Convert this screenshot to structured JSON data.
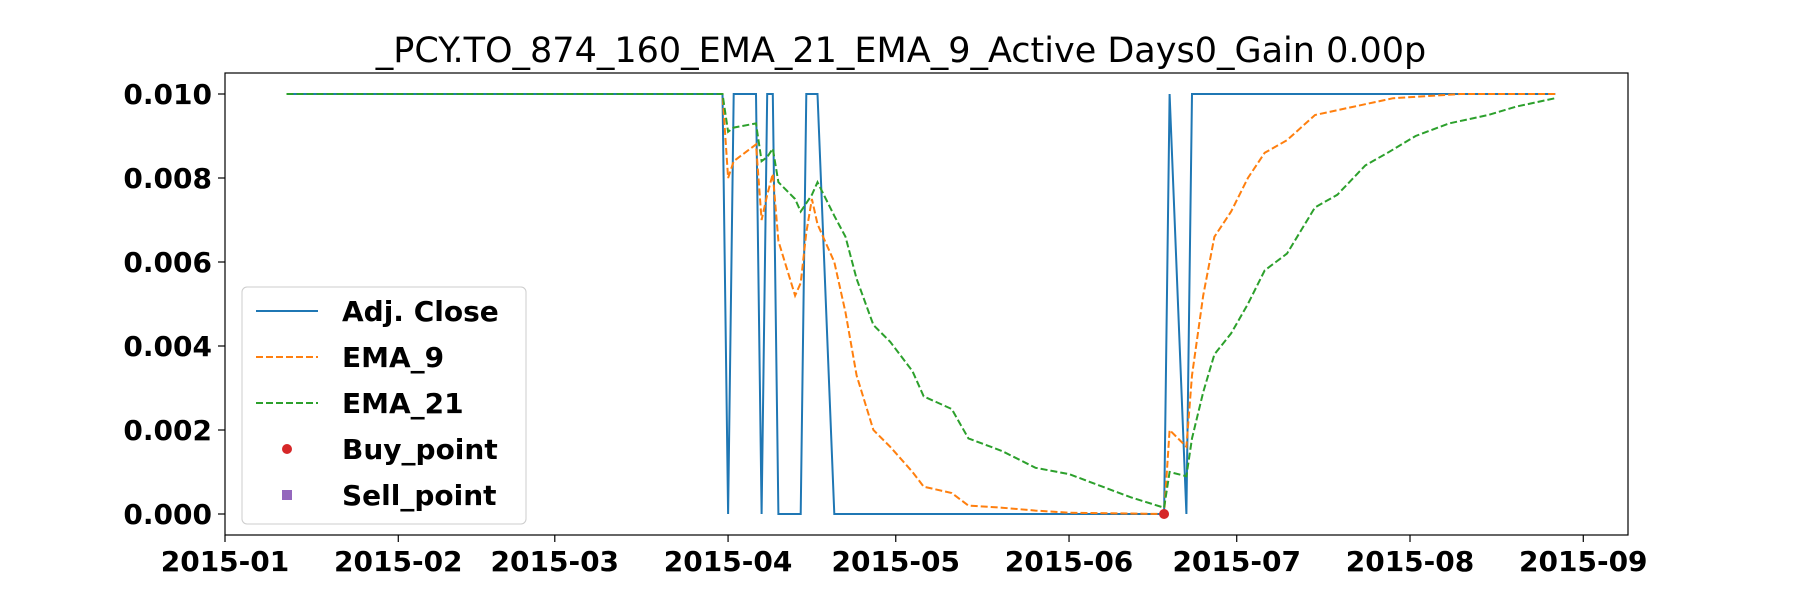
{
  "chart_data": {
    "type": "line",
    "title": "_PCY.TO_874_160_EMA_21_EMA_9_Active Days0_Gain   0.00p",
    "xlabel": "",
    "ylabel": "",
    "xlim": [
      "2015-01-01",
      "2015-09-09"
    ],
    "ylim": [
      -0.0005,
      0.0105
    ],
    "x_ticks": [
      "2015-01-01",
      "2015-02-01",
      "2015-03-01",
      "2015-04-01",
      "2015-05-01",
      "2015-06-01",
      "2015-07-01",
      "2015-08-01",
      "2015-09-01"
    ],
    "x_tick_labels": [
      "2015-01",
      "2015-02",
      "2015-03",
      "2015-04",
      "2015-05",
      "2015-06",
      "2015-07",
      "2015-08",
      "2015-09"
    ],
    "y_ticks": [
      0.0,
      0.002,
      0.004,
      0.006,
      0.008,
      0.01
    ],
    "y_tick_labels": [
      "0.000",
      "0.002",
      "0.004",
      "0.006",
      "0.008",
      "0.010"
    ],
    "grid": false,
    "legend_position": "lower-left",
    "series": [
      {
        "name": "Adj. Close",
        "color": "#1f77b4",
        "style": "solid",
        "points": [
          [
            "2015-01-12",
            0.01
          ],
          [
            "2015-03-31",
            0.01
          ],
          [
            "2015-04-01",
            0.0
          ],
          [
            "2015-04-02",
            0.01
          ],
          [
            "2015-04-06",
            0.01
          ],
          [
            "2015-04-07",
            0.0
          ],
          [
            "2015-04-08",
            0.01
          ],
          [
            "2015-04-09",
            0.01
          ],
          [
            "2015-04-10",
            0.0
          ],
          [
            "2015-04-13",
            0.0
          ],
          [
            "2015-04-14",
            0.0
          ],
          [
            "2015-04-15",
            0.01
          ],
          [
            "2015-04-16",
            0.01
          ],
          [
            "2015-04-17",
            0.01
          ],
          [
            "2015-04-20",
            0.0
          ],
          [
            "2015-06-18",
            0.0
          ],
          [
            "2015-06-19",
            0.01
          ],
          [
            "2015-06-22",
            0.0
          ],
          [
            "2015-06-23",
            0.01
          ],
          [
            "2015-08-27",
            0.01
          ]
        ]
      },
      {
        "name": "EMA_9",
        "color": "#ff7f0e",
        "style": "dashed",
        "points": [
          [
            "2015-01-12",
            0.01
          ],
          [
            "2015-03-31",
            0.01
          ],
          [
            "2015-04-01",
            0.008
          ],
          [
            "2015-04-02",
            0.0084
          ],
          [
            "2015-04-06",
            0.0088
          ],
          [
            "2015-04-07",
            0.007
          ],
          [
            "2015-04-08",
            0.0076
          ],
          [
            "2015-04-09",
            0.0081
          ],
          [
            "2015-04-10",
            0.0065
          ],
          [
            "2015-04-13",
            0.0052
          ],
          [
            "2015-04-14",
            0.0055
          ],
          [
            "2015-04-15",
            0.0067
          ],
          [
            "2015-04-16",
            0.0075
          ],
          [
            "2015-04-17",
            0.0069
          ],
          [
            "2015-04-20",
            0.006
          ],
          [
            "2015-04-22",
            0.0048
          ],
          [
            "2015-04-24",
            0.0033
          ],
          [
            "2015-04-27",
            0.002
          ],
          [
            "2015-04-30",
            0.0016
          ],
          [
            "2015-05-04",
            0.001
          ],
          [
            "2015-05-06",
            0.00065
          ],
          [
            "2015-05-11",
            0.0005
          ],
          [
            "2015-05-14",
            0.0002
          ],
          [
            "2015-05-20",
            0.00015
          ],
          [
            "2015-05-26",
            8e-05
          ],
          [
            "2015-06-01",
            3e-05
          ],
          [
            "2015-06-18",
            0.0
          ],
          [
            "2015-06-19",
            0.002
          ],
          [
            "2015-06-22",
            0.0016
          ],
          [
            "2015-06-23",
            0.0033
          ],
          [
            "2015-06-25",
            0.0052
          ],
          [
            "2015-06-27",
            0.0066
          ],
          [
            "2015-06-30",
            0.0072
          ],
          [
            "2015-07-03",
            0.008
          ],
          [
            "2015-07-06",
            0.0086
          ],
          [
            "2015-07-10",
            0.0089
          ],
          [
            "2015-07-15",
            0.0095
          ],
          [
            "2015-07-22",
            0.0097
          ],
          [
            "2015-07-29",
            0.0099
          ],
          [
            "2015-08-10",
            0.01
          ],
          [
            "2015-08-27",
            0.01
          ]
        ]
      },
      {
        "name": "EMA_21",
        "color": "#2ca02c",
        "style": "dashed",
        "points": [
          [
            "2015-01-12",
            0.01
          ],
          [
            "2015-03-31",
            0.01
          ],
          [
            "2015-04-01",
            0.0091
          ],
          [
            "2015-04-02",
            0.0092
          ],
          [
            "2015-04-06",
            0.0093
          ],
          [
            "2015-04-07",
            0.0084
          ],
          [
            "2015-04-08",
            0.0085
          ],
          [
            "2015-04-09",
            0.0087
          ],
          [
            "2015-04-10",
            0.0079
          ],
          [
            "2015-04-13",
            0.0075
          ],
          [
            "2015-04-14",
            0.0072
          ],
          [
            "2015-04-15",
            0.0074
          ],
          [
            "2015-04-16",
            0.0076
          ],
          [
            "2015-04-17",
            0.0079
          ],
          [
            "2015-04-20",
            0.0071
          ],
          [
            "2015-04-22",
            0.0066
          ],
          [
            "2015-04-24",
            0.0056
          ],
          [
            "2015-04-27",
            0.0045
          ],
          [
            "2015-04-30",
            0.0041
          ],
          [
            "2015-05-04",
            0.0034
          ],
          [
            "2015-05-06",
            0.0028
          ],
          [
            "2015-05-11",
            0.0025
          ],
          [
            "2015-05-14",
            0.0018
          ],
          [
            "2015-05-20",
            0.0015
          ],
          [
            "2015-05-26",
            0.0011
          ],
          [
            "2015-06-01",
            0.00095
          ],
          [
            "2015-06-07",
            0.00065
          ],
          [
            "2015-06-12",
            0.0004
          ],
          [
            "2015-06-18",
            0.00015
          ],
          [
            "2015-06-19",
            0.001
          ],
          [
            "2015-06-22",
            0.0009
          ],
          [
            "2015-06-23",
            0.0018
          ],
          [
            "2015-06-25",
            0.0029
          ],
          [
            "2015-06-27",
            0.0038
          ],
          [
            "2015-06-30",
            0.0043
          ],
          [
            "2015-07-03",
            0.005
          ],
          [
            "2015-07-06",
            0.0058
          ],
          [
            "2015-07-10",
            0.0062
          ],
          [
            "2015-07-15",
            0.0073
          ],
          [
            "2015-07-19",
            0.0076
          ],
          [
            "2015-07-24",
            0.0083
          ],
          [
            "2015-07-28",
            0.0086
          ],
          [
            "2015-08-02",
            0.009
          ],
          [
            "2015-08-08",
            0.0093
          ],
          [
            "2015-08-15",
            0.0095
          ],
          [
            "2015-08-20",
            0.0097
          ],
          [
            "2015-08-27",
            0.0099
          ]
        ]
      }
    ],
    "markers": [
      {
        "name": "Buy_point",
        "color": "#d62728",
        "shape": "circle",
        "points": [
          [
            "2015-06-18",
            0.0
          ]
        ]
      },
      {
        "name": "Sell_point",
        "color": "#9467bd",
        "shape": "square",
        "points": []
      }
    ],
    "legend": [
      {
        "label": "Adj. Close",
        "color": "#1f77b4",
        "kind": "solid"
      },
      {
        "label": "EMA_9",
        "color": "#ff7f0e",
        "kind": "dashed"
      },
      {
        "label": "EMA_21",
        "color": "#2ca02c",
        "kind": "dashed"
      },
      {
        "label": "Buy_point",
        "color": "#d62728",
        "kind": "circle"
      },
      {
        "label": "Sell_point",
        "color": "#9467bd",
        "kind": "square"
      }
    ]
  }
}
